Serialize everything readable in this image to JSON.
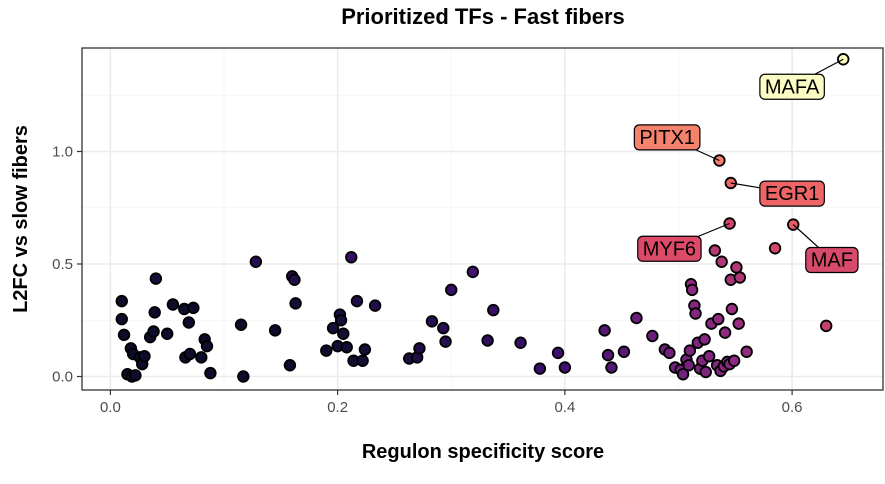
{
  "chart_data": {
    "type": "scatter",
    "title": "Prioritized TFs - Fast fibers",
    "xlabel": "Regulon specificity score",
    "ylabel": "L2FC vs slow fibers",
    "xlim": [
      -0.025,
      0.68
    ],
    "ylim": [
      -0.06,
      1.46
    ],
    "x_ticks": [
      0.0,
      0.2,
      0.4,
      0.6
    ],
    "x_tick_labels": [
      "0.0",
      "0.2",
      "0.4",
      "0.6"
    ],
    "y_ticks": [
      0.0,
      0.5,
      1.0
    ],
    "y_tick_labels": [
      "0.0",
      "0.5",
      "1.0"
    ],
    "grid": true,
    "color_scale": [
      "#0d0d2b",
      "#3b0f6f",
      "#8c2981",
      "#de4968",
      "#fe9f6d",
      "#fcfdbf"
    ],
    "points": [
      {
        "x": 0.01,
        "y": 0.335
      },
      {
        "x": 0.01,
        "y": 0.255
      },
      {
        "x": 0.012,
        "y": 0.185
      },
      {
        "x": 0.015,
        "y": 0.01
      },
      {
        "x": 0.018,
        "y": 0.125
      },
      {
        "x": 0.019,
        "y": 0.0
      },
      {
        "x": 0.02,
        "y": 0.1
      },
      {
        "x": 0.022,
        "y": 0.005
      },
      {
        "x": 0.026,
        "y": 0.085
      },
      {
        "x": 0.028,
        "y": 0.055
      },
      {
        "x": 0.03,
        "y": 0.09
      },
      {
        "x": 0.035,
        "y": 0.175
      },
      {
        "x": 0.038,
        "y": 0.2
      },
      {
        "x": 0.039,
        "y": 0.285
      },
      {
        "x": 0.04,
        "y": 0.435
      },
      {
        "x": 0.05,
        "y": 0.19
      },
      {
        "x": 0.055,
        "y": 0.32
      },
      {
        "x": 0.065,
        "y": 0.3
      },
      {
        "x": 0.066,
        "y": 0.085
      },
      {
        "x": 0.069,
        "y": 0.24
      },
      {
        "x": 0.07,
        "y": 0.1
      },
      {
        "x": 0.073,
        "y": 0.305
      },
      {
        "x": 0.08,
        "y": 0.085
      },
      {
        "x": 0.083,
        "y": 0.165
      },
      {
        "x": 0.085,
        "y": 0.135
      },
      {
        "x": 0.088,
        "y": 0.015
      },
      {
        "x": 0.115,
        "y": 0.23
      },
      {
        "x": 0.117,
        "y": 0.0
      },
      {
        "x": 0.128,
        "y": 0.51
      },
      {
        "x": 0.145,
        "y": 0.205
      },
      {
        "x": 0.158,
        "y": 0.05
      },
      {
        "x": 0.16,
        "y": 0.445
      },
      {
        "x": 0.162,
        "y": 0.43
      },
      {
        "x": 0.163,
        "y": 0.325
      },
      {
        "x": 0.19,
        "y": 0.115
      },
      {
        "x": 0.196,
        "y": 0.215
      },
      {
        "x": 0.2,
        "y": 0.135
      },
      {
        "x": 0.202,
        "y": 0.275
      },
      {
        "x": 0.203,
        "y": 0.25
      },
      {
        "x": 0.205,
        "y": 0.19
      },
      {
        "x": 0.208,
        "y": 0.13
      },
      {
        "x": 0.212,
        "y": 0.53
      },
      {
        "x": 0.214,
        "y": 0.07
      },
      {
        "x": 0.217,
        "y": 0.335
      },
      {
        "x": 0.222,
        "y": 0.07
      },
      {
        "x": 0.224,
        "y": 0.12
      },
      {
        "x": 0.233,
        "y": 0.315
      },
      {
        "x": 0.263,
        "y": 0.08
      },
      {
        "x": 0.27,
        "y": 0.085
      },
      {
        "x": 0.272,
        "y": 0.125
      },
      {
        "x": 0.283,
        "y": 0.245
      },
      {
        "x": 0.293,
        "y": 0.215
      },
      {
        "x": 0.295,
        "y": 0.155
      },
      {
        "x": 0.3,
        "y": 0.385
      },
      {
        "x": 0.319,
        "y": 0.465
      },
      {
        "x": 0.332,
        "y": 0.16
      },
      {
        "x": 0.337,
        "y": 0.295
      },
      {
        "x": 0.361,
        "y": 0.15
      },
      {
        "x": 0.378,
        "y": 0.035
      },
      {
        "x": 0.394,
        "y": 0.105
      },
      {
        "x": 0.4,
        "y": 0.04
      },
      {
        "x": 0.435,
        "y": 0.205
      },
      {
        "x": 0.438,
        "y": 0.095
      },
      {
        "x": 0.441,
        "y": 0.04
      },
      {
        "x": 0.452,
        "y": 0.11
      },
      {
        "x": 0.463,
        "y": 0.26
      },
      {
        "x": 0.477,
        "y": 0.18
      },
      {
        "x": 0.488,
        "y": 0.12
      },
      {
        "x": 0.492,
        "y": 0.105
      },
      {
        "x": 0.497,
        "y": 0.04
      },
      {
        "x": 0.502,
        "y": 0.03
      },
      {
        "x": 0.504,
        "y": 0.01
      },
      {
        "x": 0.507,
        "y": 0.075
      },
      {
        "x": 0.509,
        "y": 0.05
      },
      {
        "x": 0.51,
        "y": 0.115
      },
      {
        "x": 0.511,
        "y": 0.41
      },
      {
        "x": 0.512,
        "y": 0.385
      },
      {
        "x": 0.514,
        "y": 0.315
      },
      {
        "x": 0.515,
        "y": 0.28
      },
      {
        "x": 0.517,
        "y": 0.15
      },
      {
        "x": 0.519,
        "y": 0.035
      },
      {
        "x": 0.521,
        "y": 0.07
      },
      {
        "x": 0.523,
        "y": 0.165
      },
      {
        "x": 0.524,
        "y": 0.02
      },
      {
        "x": 0.527,
        "y": 0.09
      },
      {
        "x": 0.529,
        "y": 0.235
      },
      {
        "x": 0.532,
        "y": 0.56
      },
      {
        "x": 0.534,
        "y": 0.05
      },
      {
        "x": 0.535,
        "y": 0.255
      },
      {
        "x": 0.537,
        "y": 0.025
      },
      {
        "x": 0.538,
        "y": 0.51
      },
      {
        "x": 0.54,
        "y": 0.045
      },
      {
        "x": 0.541,
        "y": 0.195
      },
      {
        "x": 0.543,
        "y": 0.065
      },
      {
        "x": 0.545,
        "y": 0.055
      },
      {
        "x": 0.546,
        "y": 0.43
      },
      {
        "x": 0.547,
        "y": 0.3
      },
      {
        "x": 0.549,
        "y": 0.07
      },
      {
        "x": 0.551,
        "y": 0.485
      },
      {
        "x": 0.553,
        "y": 0.235
      },
      {
        "x": 0.554,
        "y": 0.44
      },
      {
        "x": 0.56,
        "y": 0.11
      },
      {
        "x": 0.585,
        "y": 0.57
      },
      {
        "x": 0.63,
        "y": 0.225
      },
      {
        "x": 0.536,
        "y": 0.96
      },
      {
        "x": 0.546,
        "y": 0.86
      },
      {
        "x": 0.545,
        "y": 0.68
      },
      {
        "x": 0.601,
        "y": 0.675
      },
      {
        "x": 0.645,
        "y": 1.41
      }
    ],
    "labeled_points": [
      {
        "label": "MAFA",
        "x": 0.645,
        "y": 1.41,
        "label_x": 0.6,
        "label_y": 1.29,
        "fill": "#fbfcc4"
      },
      {
        "label": "PITX1",
        "x": 0.536,
        "y": 0.96,
        "label_x": 0.49,
        "label_y": 1.065,
        "fill": "#f4826c"
      },
      {
        "label": "EGR1",
        "x": 0.546,
        "y": 0.86,
        "label_x": 0.6,
        "label_y": 0.815,
        "fill": "#ee6567"
      },
      {
        "label": "MYF6",
        "x": 0.545,
        "y": 0.68,
        "label_x": 0.492,
        "label_y": 0.57,
        "fill": "#dd4a68"
      },
      {
        "label": "MAF",
        "x": 0.601,
        "y": 0.675,
        "label_x": 0.635,
        "label_y": 0.52,
        "fill": "#d84a69"
      }
    ]
  }
}
